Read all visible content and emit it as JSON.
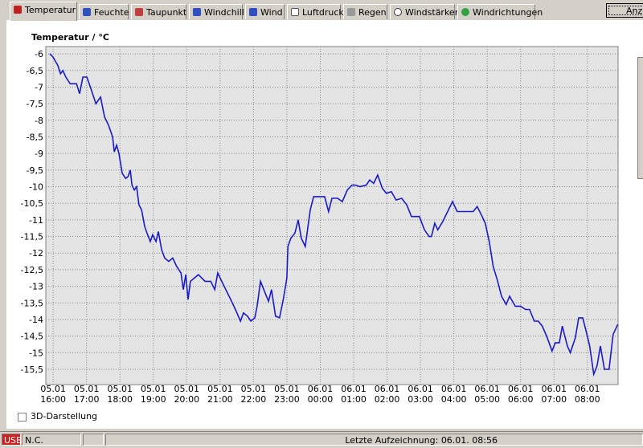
{
  "tabs": [
    "Temperatur",
    "Feuchte",
    "Taupunkt",
    "Windchill",
    "Wind",
    "Luftdruck",
    "Regen",
    "Windstärken",
    "Windrichtungen"
  ],
  "button": "Anz",
  "checkbox": "3D-Darstellung",
  "status": {
    "usb": "USB",
    "connection": "N.C.",
    "last_record": "Letzte Aufzeichnung: 06.01. 08:56"
  },
  "chart_data": {
    "type": "line",
    "ylabel": "Temperatur / °C",
    "color": "#1a1ac8",
    "grid": true,
    "xlim": [
      -0.22,
      16.92
    ],
    "ylim": [
      -15.96,
      -5.78
    ],
    "yticks": [
      -6,
      {
        "value": -6.5,
        "label": "-6,5"
      },
      -7,
      {
        "value": -7.5,
        "label": "-7,5"
      },
      -8,
      {
        "value": -8.5,
        "label": "-8,5"
      },
      -9,
      {
        "value": -9.5,
        "label": "-9,5"
      },
      -10,
      {
        "value": -10.5,
        "label": "-10,5"
      },
      -11,
      {
        "value": -11.5,
        "label": "-11,5"
      },
      -12,
      {
        "value": -12.5,
        "label": "-12,5"
      },
      -13,
      {
        "value": -13.5,
        "label": "-13,5"
      },
      -14,
      {
        "value": -14.5,
        "label": "-14,5"
      },
      -15,
      {
        "value": -15.5,
        "label": "-15,5"
      }
    ],
    "xticks": [
      {
        "value": 0,
        "label": [
          "05.01",
          "16:00"
        ]
      },
      {
        "value": 1,
        "label": [
          "05.01",
          "17:00"
        ]
      },
      {
        "value": 2,
        "label": [
          "05.01",
          "18:00"
        ]
      },
      {
        "value": 3,
        "label": [
          "05.01",
          "19:00"
        ]
      },
      {
        "value": 4,
        "label": [
          "05.01",
          "20:00"
        ]
      },
      {
        "value": 5,
        "label": [
          "05.01",
          "21:00"
        ]
      },
      {
        "value": 6,
        "label": [
          "05.01",
          "22:00"
        ]
      },
      {
        "value": 7,
        "label": [
          "05.01",
          "23:00"
        ]
      },
      {
        "value": 8,
        "label": [
          "06.01",
          "00:00"
        ]
      },
      {
        "value": 9,
        "label": [
          "06.01",
          "01:00"
        ]
      },
      {
        "value": 10,
        "label": [
          "06.01",
          "02:00"
        ]
      },
      {
        "value": 11,
        "label": [
          "06.01",
          "03:00"
        ]
      },
      {
        "value": 12,
        "label": [
          "06.01",
          "04:00"
        ]
      },
      {
        "value": 13,
        "label": [
          "06.01",
          "05:00"
        ]
      },
      {
        "value": 14,
        "label": [
          "06.01",
          "06:00"
        ]
      },
      {
        "value": 15,
        "label": [
          "06.01",
          "07:00"
        ]
      },
      {
        "value": 16,
        "label": [
          "06.01",
          "08:00"
        ]
      }
    ],
    "x": [
      -0.1,
      0,
      0.14,
      0.22,
      0.29,
      0.38,
      0.51,
      0.7,
      0.79,
      0.89,
      1.01,
      1.13,
      1.28,
      1.42,
      1.54,
      1.66,
      1.78,
      1.83,
      1.9,
      1.97,
      2.07,
      2.17,
      2.24,
      2.31,
      2.36,
      2.43,
      2.5,
      2.57,
      2.65,
      2.74,
      2.81,
      2.91,
      2.98,
      3.08,
      3.15,
      3.25,
      3.34,
      3.46,
      3.58,
      3.7,
      3.83,
      3.9,
      3.97,
      4.04,
      4.11,
      4.23,
      4.35,
      4.55,
      4.72,
      4.84,
      4.93,
      5.05,
      5.17,
      5.32,
      5.46,
      5.61,
      5.7,
      5.82,
      5.92,
      6.04,
      6.11,
      6.21,
      6.35,
      6.45,
      6.54,
      6.66,
      6.78,
      6.9,
      7,
      7.03,
      7.12,
      7.24,
      7.34,
      7.43,
      7.55,
      7.7,
      7.8,
      7.96,
      8.13,
      8.25,
      8.35,
      8.52,
      8.66,
      8.81,
      8.95,
      9.05,
      9.19,
      9.38,
      9.48,
      9.6,
      9.72,
      9.86,
      9.98,
      10.13,
      10.27,
      10.44,
      10.59,
      10.73,
      10.97,
      11.12,
      11.26,
      11.33,
      11.43,
      11.52,
      11.67,
      11.79,
      11.96,
      12.1,
      12.37,
      12.58,
      12.7,
      12.85,
      12.94,
      13.06,
      13.18,
      13.3,
      13.43,
      13.57,
      13.67,
      13.84,
      14,
      14.15,
      14.27,
      14.41,
      14.53,
      14.65,
      14.8,
      14.94,
      15.04,
      15.16,
      15.25,
      15.4,
      15.49,
      15.64,
      15.74,
      15.86,
      15.95,
      16.07,
      16.19,
      16.29,
      16.39,
      16.51,
      16.65,
      16.77,
      16.91
    ],
    "values": [
      -6,
      -6.1,
      -6.35,
      -6.6,
      -6.5,
      -6.7,
      -6.9,
      -6.9,
      -7.2,
      -6.7,
      -6.7,
      -7.05,
      -7.5,
      -7.3,
      -7.9,
      -8.15,
      -8.5,
      -8.95,
      -8.75,
      -9,
      -9.6,
      -9.75,
      -9.7,
      -9.5,
      -9.95,
      -10.1,
      -10,
      -10.55,
      -10.7,
      -11.2,
      -11.4,
      -11.65,
      -11.45,
      -11.65,
      -11.35,
      -11.9,
      -12.15,
      -12.25,
      -12.15,
      -12.4,
      -12.6,
      -13.1,
      -12.65,
      -13.4,
      -12.85,
      -12.75,
      -12.65,
      -12.85,
      -12.85,
      -13.1,
      -12.6,
      -12.85,
      -13.1,
      -13.4,
      -13.7,
      -14.05,
      -13.8,
      -13.9,
      -14.05,
      -13.95,
      -13.6,
      -12.85,
      -13.2,
      -13.45,
      -13.1,
      -13.9,
      -13.95,
      -13.35,
      -12.75,
      -11.8,
      -11.55,
      -11.4,
      -11,
      -11.55,
      -11.8,
      -10.7,
      -10.3,
      -10.3,
      -10.3,
      -10.75,
      -10.35,
      -10.35,
      -10.45,
      -10.1,
      -9.95,
      -9.95,
      -10,
      -9.95,
      -9.8,
      -9.9,
      -9.65,
      -10.05,
      -10.2,
      -10.15,
      -10.4,
      -10.35,
      -10.55,
      -10.9,
      -10.9,
      -11.3,
      -11.5,
      -11.5,
      -11.1,
      -11.3,
      -11.05,
      -10.8,
      -10.45,
      -10.75,
      -10.75,
      -10.75,
      -10.6,
      -10.9,
      -11.1,
      -11.65,
      -12.4,
      -12.8,
      -13.3,
      -13.55,
      -13.3,
      -13.6,
      -13.6,
      -13.7,
      -13.7,
      -14.05,
      -14.05,
      -14.2,
      -14.55,
      -14.95,
      -14.7,
      -14.7,
      -14.2,
      -14.8,
      -15,
      -14.55,
      -13.95,
      -13.95,
      -14.3,
      -14.8,
      -15.65,
      -15.4,
      -14.8,
      -15.5,
      -15.5,
      -14.45,
      -14.15
    ]
  }
}
